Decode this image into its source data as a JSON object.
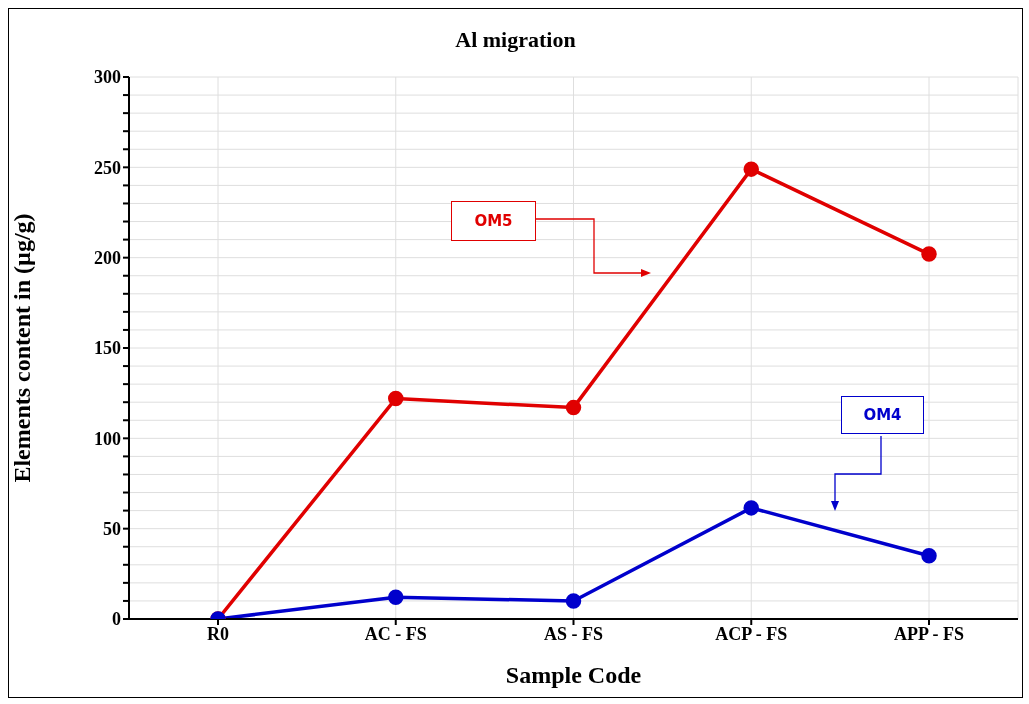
{
  "chart_data": {
    "type": "line",
    "title": "Al migration",
    "xlabel": "Sample Code",
    "ylabel": "Elements content in (µg/g)",
    "categories": [
      "R0",
      "AC - FS",
      "AS - FS",
      "ACP - FS",
      "APP - FS"
    ],
    "series": [
      {
        "name": "OM5",
        "color": "#e00000",
        "values": [
          0,
          122,
          117,
          249,
          202
        ]
      },
      {
        "name": "OM4",
        "color": "#0000cc",
        "values": [
          0,
          12,
          10,
          61.5,
          35
        ]
      }
    ],
    "ylim": [
      0,
      300
    ],
    "yticks": [
      0,
      {
        "value": 10,
        "label": null
      },
      {
        "value": 20,
        "label": null
      },
      {
        "value": 30,
        "label": null
      },
      {
        "value": 40,
        "label": null
      },
      50,
      {
        "value": 60,
        "label": null
      },
      {
        "value": 70,
        "label": null
      },
      {
        "value": 80,
        "label": null
      },
      {
        "value": 90,
        "label": null
      },
      100,
      {
        "value": 110,
        "label": null
      },
      {
        "value": 120,
        "label": null
      },
      {
        "value": 130,
        "label": null
      },
      {
        "value": 140,
        "label": null
      },
      150,
      {
        "value": 160,
        "label": null
      },
      {
        "value": 170,
        "label": null
      },
      {
        "value": 180,
        "label": null
      },
      {
        "value": 190,
        "label": null
      },
      200,
      {
        "value": 210,
        "label": null
      },
      {
        "value": 220,
        "label": null
      },
      {
        "value": 230,
        "label": null
      },
      {
        "value": 240,
        "label": null
      },
      250,
      {
        "value": 260,
        "label": null
      },
      {
        "value": 270,
        "label": null
      },
      {
        "value": 280,
        "label": null
      },
      {
        "value": 290,
        "label": null
      },
      300
    ],
    "grid": true,
    "marker": "circle",
    "line_style": "solid"
  }
}
